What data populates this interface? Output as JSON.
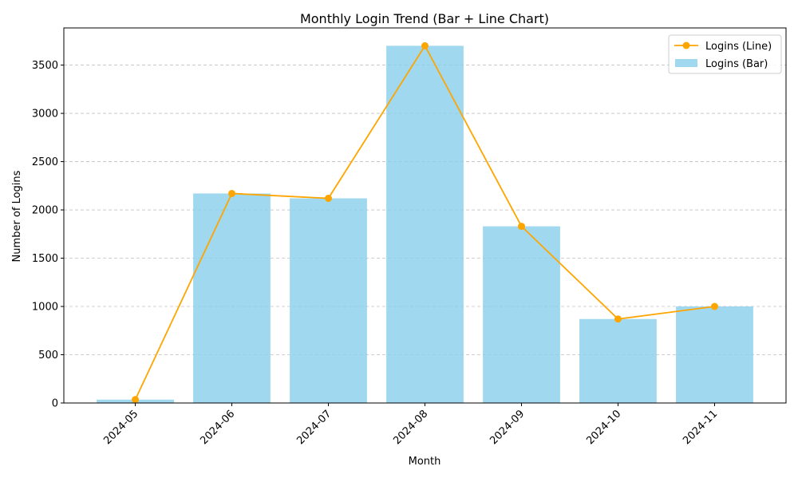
{
  "chart_data": {
    "type": "bar",
    "title": "Monthly Login Trend (Bar + Line Chart)",
    "xlabel": "Month",
    "ylabel": "Number of Logins",
    "categories": [
      "2024-05",
      "2024-06",
      "2024-07",
      "2024-08",
      "2024-09",
      "2024-10",
      "2024-11"
    ],
    "series": [
      {
        "name": "Logins (Bar)",
        "type": "bar",
        "color": "#87ceeb",
        "values": [
          35,
          2170,
          2120,
          3700,
          1830,
          870,
          1000
        ]
      },
      {
        "name": "Logins (Line)",
        "type": "line",
        "color": "#ffa500",
        "marker": "circle",
        "values": [
          35,
          2170,
          2120,
          3700,
          1830,
          870,
          1000
        ]
      }
    ],
    "ylim": [
      0,
      3885
    ],
    "yticks": [
      0,
      500,
      1000,
      1500,
      2000,
      2500,
      3000,
      3500
    ],
    "grid": "horizontal dashed",
    "legend": "top-right"
  }
}
